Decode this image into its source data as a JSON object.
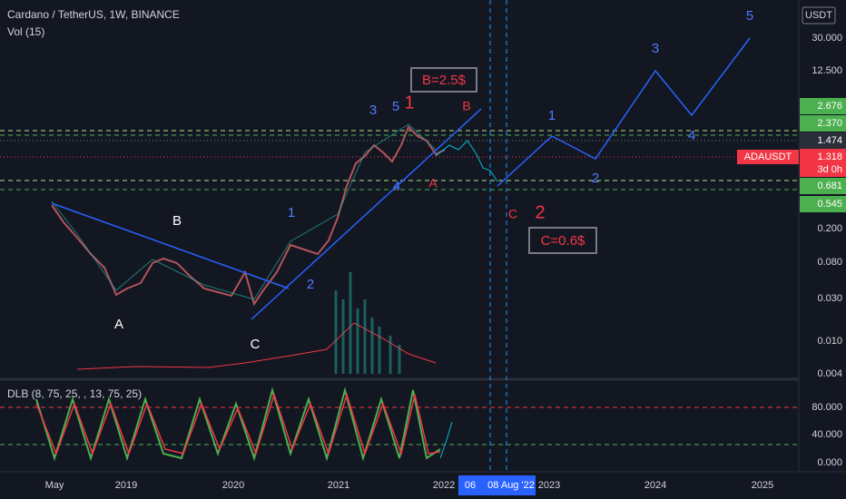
{
  "header": {
    "symbol": "Cardano / TetherUS, 1W, BINANCE",
    "volume": "Vol (15)",
    "currency": "USDT"
  },
  "price_axis": {
    "labels": [
      "30.000",
      "12.500",
      "2.676",
      "2.370",
      "1.474",
      "1.318",
      "0.681",
      "0.545",
      "0.200",
      "0.080",
      "0.030",
      "0.010",
      "0.004"
    ],
    "ticker": "ADAUSDT",
    "countdown": "3d 0h"
  },
  "time_axis": {
    "labels": [
      "May",
      "2019",
      "2020",
      "2021",
      "2022",
      "2023",
      "2024",
      "2025"
    ],
    "highlight": [
      "06",
      "08 Aug '22"
    ]
  },
  "indicator": {
    "label": "DLB (8, 75, 25, , 13, 75, 25)",
    "axis": [
      "80.000",
      "40.000",
      "0.000"
    ]
  },
  "annotations": {
    "past_white": [
      "B",
      "A",
      "C"
    ],
    "past_blue": [
      "1",
      "2",
      "3",
      "5",
      "4"
    ],
    "red": [
      "1",
      "A",
      "B",
      "C",
      "2"
    ],
    "boxes": [
      "B=2.5$",
      "C=0.6$"
    ],
    "future_blue": [
      "1",
      "2",
      "3",
      "4",
      "5"
    ]
  }
}
